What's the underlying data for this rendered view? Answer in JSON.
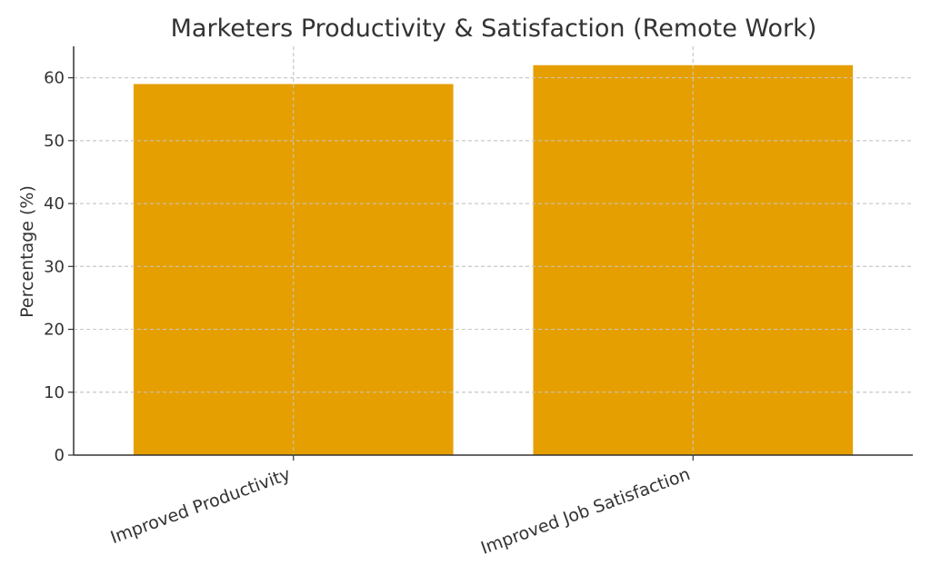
{
  "chart_data": {
    "type": "bar",
    "title": "Marketers Productivity & Satisfaction (Remote Work)",
    "xlabel": "",
    "ylabel": "Percentage (%)",
    "categories": [
      "Improved Productivity",
      "Improved Job Satisfaction"
    ],
    "values": [
      59,
      62
    ],
    "ylim": [
      0,
      65
    ],
    "yticks": [
      0,
      10,
      20,
      30,
      40,
      50,
      60
    ],
    "bar_color": "#e69f00",
    "grid": true,
    "grid_style": "dashed"
  }
}
